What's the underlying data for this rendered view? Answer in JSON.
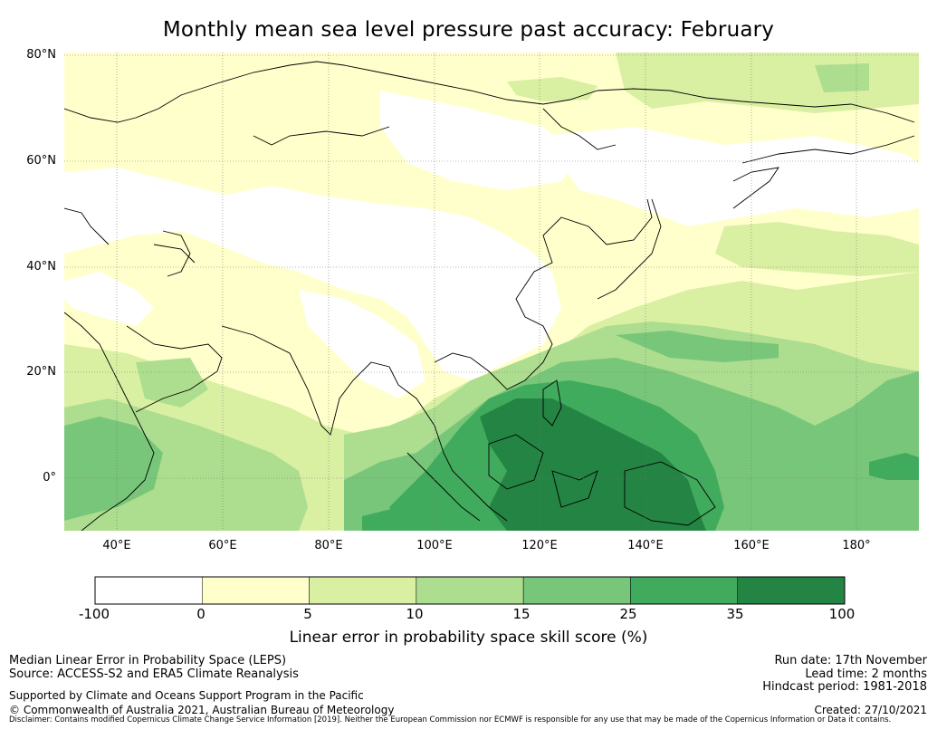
{
  "title": "Monthly mean sea level pressure past accuracy: February",
  "map": {
    "lat_labels": [
      "80°N",
      "60°N",
      "40°N",
      "20°N",
      "0°"
    ],
    "lat_values": [
      80,
      60,
      40,
      20,
      0
    ],
    "lon_labels": [
      "40°E",
      "60°E",
      "80°E",
      "100°E",
      "120°E",
      "140°E",
      "160°E",
      "180°"
    ],
    "lon_values": [
      40,
      60,
      80,
      100,
      120,
      140,
      160,
      180
    ],
    "extent": {
      "lon_min": 30,
      "lon_max": 192,
      "lat_min": -10,
      "lat_max": 81
    }
  },
  "colorbar": {
    "tick_labels": [
      "-100",
      "0",
      "5",
      "10",
      "15",
      "25",
      "35",
      "100"
    ],
    "colors": [
      "#ffffff",
      "#ffffcc",
      "#d9f0a3",
      "#addd8e",
      "#78c679",
      "#41ab5d",
      "#238443"
    ],
    "label": "Linear error in probability space skill score (%)"
  },
  "footer": {
    "left_line1": "Median Linear Error in Probability Space (LEPS)",
    "left_line2": "Source: ACCESS-S2 and ERA5 Climate Reanalysis",
    "left_line3": "Supported by Climate and Oceans Support Program in the Pacific",
    "left_line4": "© Commonwealth of Australia 2021, Australian Bureau of Meteorology",
    "right_line1": "Run date: 17th November",
    "right_line2": "Lead time: 2 months",
    "right_line3": "Hindcast period: 1981-2018",
    "right_line4": "Created: 27/10/2021",
    "disclaimer": "Disclaimer: Contains modified Copernicus Climate Change Service Information [2019]. Neither the European Commission nor ECMWF is responsible for any use that may be made of the Copernicus Information or Data it contains."
  }
}
